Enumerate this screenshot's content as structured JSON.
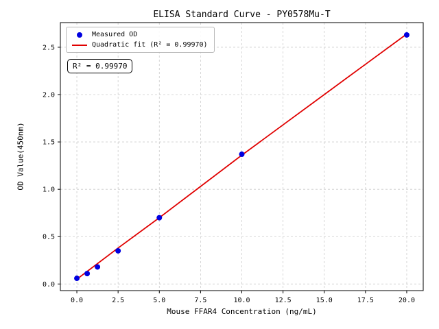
{
  "chart_data": {
    "type": "scatter",
    "title": "ELISA Standard Curve - PY0578Mu-T",
    "xlabel": "Mouse FFAR4 Concentration (ng/mL)",
    "ylabel": "OD Value(450nm)",
    "xlim": [
      -1.0,
      21.0
    ],
    "ylim": [
      -0.07,
      2.76
    ],
    "xticks": [
      0.0,
      2.5,
      5.0,
      7.5,
      10.0,
      12.5,
      15.0,
      17.5,
      20.0
    ],
    "yticks": [
      0.0,
      0.5,
      1.0,
      1.5,
      2.0,
      2.5
    ],
    "xtick_labels": [
      "0.0",
      "2.5",
      "5.0",
      "7.5",
      "10.0",
      "12.5",
      "15.0",
      "17.5",
      "20.0"
    ],
    "ytick_labels": [
      "0.0",
      "0.5",
      "1.0",
      "1.5",
      "2.0",
      "2.5"
    ],
    "grid": true,
    "grid_color": "#cccccc",
    "legend_position": "upper left",
    "series": [
      {
        "name": "Measured OD",
        "type": "scatter",
        "color": "#0000e0",
        "x": [
          0,
          0.625,
          1.25,
          2.5,
          5,
          10,
          20
        ],
        "y": [
          0.06,
          0.11,
          0.18,
          0.35,
          0.7,
          1.37,
          2.63
        ]
      },
      {
        "name": "Quadratic fit (R² = 0.99970)",
        "type": "line",
        "color": "#e00000",
        "fit_kind": "quadratic",
        "r_squared": "0.99970",
        "x": [
          0,
          2.5,
          5,
          7.5,
          10,
          12.5,
          15,
          17.5,
          20
        ],
        "y": [
          0.05,
          0.38,
          0.7,
          1.03,
          1.36,
          1.68,
          2.0,
          2.32,
          2.64
        ]
      }
    ],
    "annotation": "R² = 0.99970"
  }
}
